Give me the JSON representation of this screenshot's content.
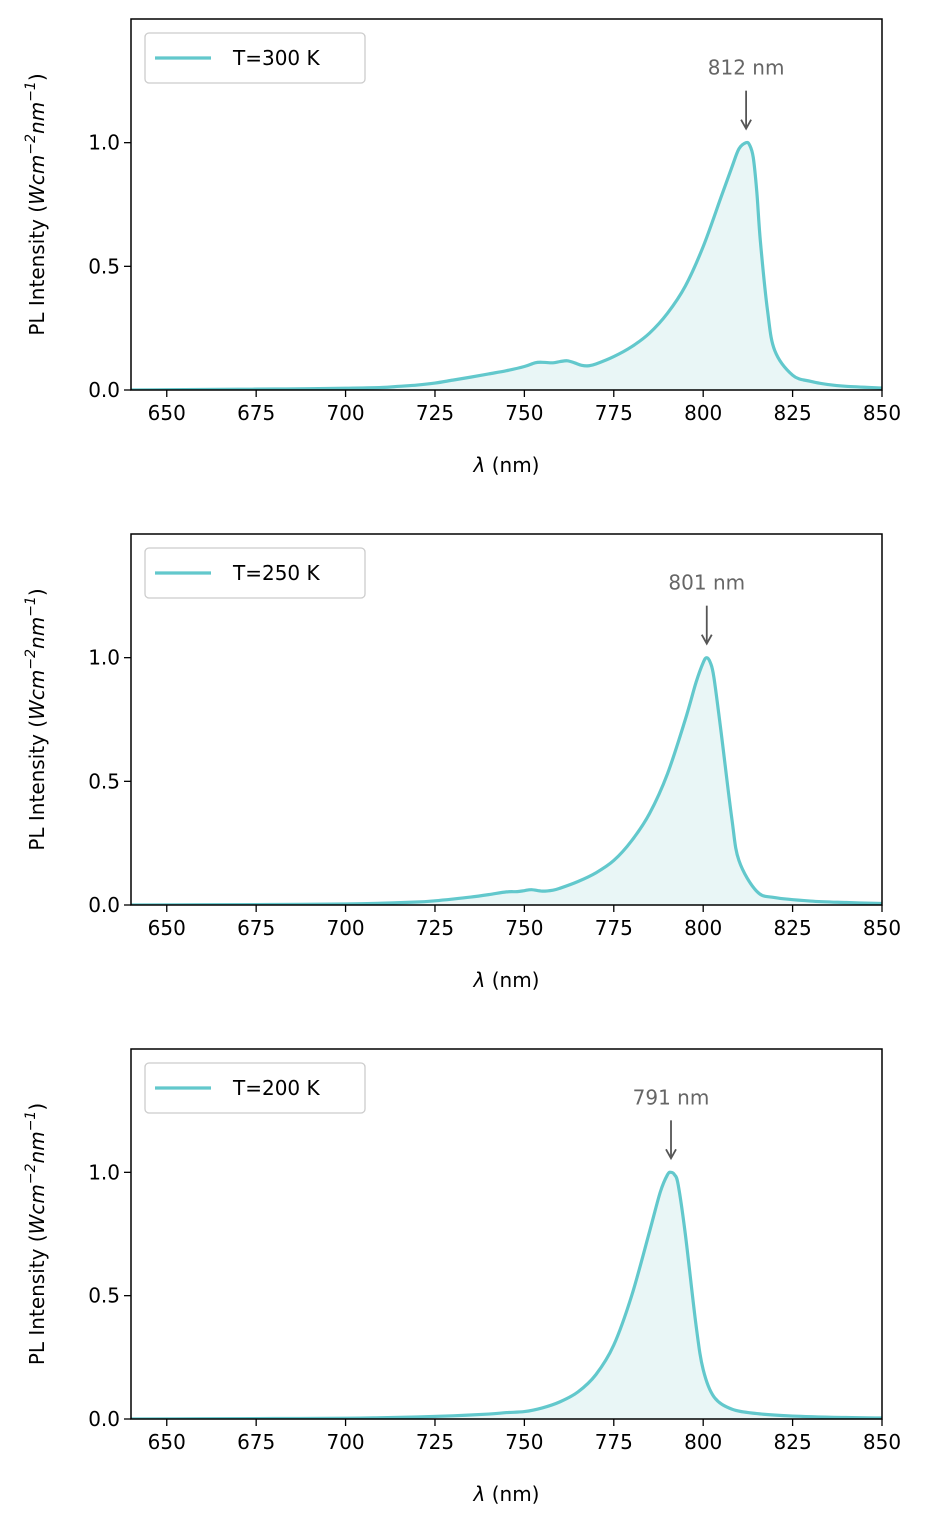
{
  "chart_data": [
    {
      "type": "area",
      "xlabel_symbol": "λ",
      "xlabel_unit": " (nm)",
      "ylabel_main": "PL Intensity (",
      "ylabel_units": [
        {
          "t": "Wcm",
          "sup": false
        },
        {
          "t": "−2",
          "sup": true
        },
        {
          "t": "nm",
          "sup": false
        },
        {
          "t": "−1",
          "sup": true
        }
      ],
      "ylabel_close": ")",
      "xlim": [
        640,
        850
      ],
      "ylim": [
        0,
        1.5
      ],
      "xticks": [
        650,
        675,
        700,
        725,
        750,
        775,
        800,
        825,
        850
      ],
      "yticks": [
        0.0,
        0.5,
        1.0
      ],
      "ytick_labels": [
        "0.0",
        "0.5",
        "1.0"
      ],
      "legend": {
        "label": "T=300 K",
        "loc": "upper left"
      },
      "annotation": {
        "text": "812 nm",
        "x": 812,
        "y": 1.0
      },
      "line_color": "#62c8cc",
      "fill_color": "#e9f6f6",
      "series": [
        {
          "name": "T=300 K",
          "x": [
            640,
            650,
            660,
            670,
            680,
            690,
            700,
            710,
            715,
            720,
            725,
            730,
            735,
            740,
            745,
            750,
            753,
            755,
            758,
            760,
            762,
            764,
            766,
            768,
            770,
            775,
            780,
            785,
            790,
            795,
            800,
            805,
            808,
            810,
            812,
            813,
            814,
            815,
            816,
            818,
            820,
            825,
            830,
            835,
            840,
            850
          ],
          "y": [
            0.0,
            0.001,
            0.002,
            0.003,
            0.004,
            0.005,
            0.007,
            0.01,
            0.015,
            0.02,
            0.028,
            0.04,
            0.052,
            0.065,
            0.078,
            0.095,
            0.11,
            0.112,
            0.11,
            0.115,
            0.118,
            0.11,
            0.1,
            0.098,
            0.105,
            0.135,
            0.175,
            0.23,
            0.31,
            0.42,
            0.58,
            0.78,
            0.9,
            0.975,
            1.0,
            0.99,
            0.94,
            0.8,
            0.6,
            0.32,
            0.16,
            0.06,
            0.035,
            0.022,
            0.015,
            0.008
          ]
        }
      ]
    },
    {
      "type": "area",
      "xlabel_symbol": "λ",
      "xlabel_unit": " (nm)",
      "ylabel_main": "PL Intensity (",
      "ylabel_units": [
        {
          "t": "Wcm",
          "sup": false
        },
        {
          "t": "−2",
          "sup": true
        },
        {
          "t": "nm",
          "sup": false
        },
        {
          "t": "−1",
          "sup": true
        }
      ],
      "ylabel_close": ")",
      "xlim": [
        640,
        850
      ],
      "ylim": [
        0,
        1.5
      ],
      "xticks": [
        650,
        675,
        700,
        725,
        750,
        775,
        800,
        825,
        850
      ],
      "yticks": [
        0.0,
        0.5,
        1.0
      ],
      "ytick_labels": [
        "0.0",
        "0.5",
        "1.0"
      ],
      "legend": {
        "label": "T=250 K",
        "loc": "upper left"
      },
      "annotation": {
        "text": "801 nm",
        "x": 801,
        "y": 1.0
      },
      "line_color": "#62c8cc",
      "fill_color": "#e9f6f6",
      "series": [
        {
          "name": "T=250 K",
          "x": [
            640,
            660,
            680,
            700,
            710,
            720,
            725,
            730,
            735,
            740,
            745,
            748,
            750,
            752,
            755,
            758,
            760,
            765,
            770,
            775,
            780,
            785,
            790,
            795,
            798,
            800,
            801,
            802,
            803,
            805,
            808,
            810,
            815,
            820,
            830,
            840,
            850
          ],
          "y": [
            0.0,
            0.001,
            0.002,
            0.004,
            0.007,
            0.012,
            0.017,
            0.024,
            0.032,
            0.042,
            0.053,
            0.054,
            0.058,
            0.062,
            0.056,
            0.06,
            0.068,
            0.095,
            0.13,
            0.18,
            0.26,
            0.37,
            0.53,
            0.75,
            0.9,
            0.98,
            1.0,
            0.98,
            0.92,
            0.7,
            0.35,
            0.18,
            0.055,
            0.03,
            0.016,
            0.01,
            0.006
          ]
        }
      ]
    },
    {
      "type": "area",
      "xlabel_symbol": "λ",
      "xlabel_unit": " (nm)",
      "ylabel_main": "PL Intensity (",
      "ylabel_units": [
        {
          "t": "Wcm",
          "sup": false
        },
        {
          "t": "−2",
          "sup": true
        },
        {
          "t": "nm",
          "sup": false
        },
        {
          "t": "−1",
          "sup": true
        }
      ],
      "ylabel_close": ")",
      "xlim": [
        640,
        850
      ],
      "ylim": [
        0,
        1.5
      ],
      "xticks": [
        650,
        675,
        700,
        725,
        750,
        775,
        800,
        825,
        850
      ],
      "yticks": [
        0.0,
        0.5,
        1.0
      ],
      "ytick_labels": [
        "0.0",
        "0.5",
        "1.0"
      ],
      "legend": {
        "label": "T=200 K",
        "loc": "upper left"
      },
      "annotation": {
        "text": "791 nm",
        "x": 791,
        "y": 1.0
      },
      "line_color": "#62c8cc",
      "fill_color": "#e9f6f6",
      "series": [
        {
          "name": "T=200 K",
          "x": [
            640,
            660,
            680,
            700,
            710,
            720,
            730,
            740,
            745,
            750,
            755,
            760,
            765,
            770,
            775,
            780,
            785,
            788,
            790,
            791,
            792,
            793,
            795,
            798,
            800,
            803,
            808,
            815,
            825,
            840,
            850
          ],
          "y": [
            0.0,
            0.001,
            0.002,
            0.003,
            0.005,
            0.008,
            0.013,
            0.02,
            0.026,
            0.03,
            0.045,
            0.07,
            0.11,
            0.18,
            0.3,
            0.5,
            0.76,
            0.92,
            0.99,
            1.0,
            0.99,
            0.95,
            0.75,
            0.38,
            0.2,
            0.09,
            0.04,
            0.022,
            0.012,
            0.006,
            0.004
          ]
        }
      ]
    }
  ]
}
